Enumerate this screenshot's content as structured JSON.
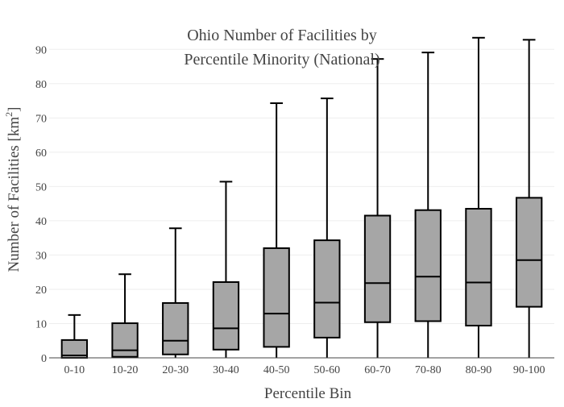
{
  "chart_data": {
    "type": "box",
    "title": [
      "Ohio Number of Facilities by",
      "Percentile Minority (National)"
    ],
    "xlabel": "Percentile Bin",
    "ylabel": "Number of Facilities  [km",
    "ylabel_sup": "2",
    "ylabel_close": "]",
    "ylim": [
      0,
      95
    ],
    "yticks": [
      0,
      10,
      20,
      30,
      40,
      50,
      60,
      70,
      80,
      90
    ],
    "grid": true,
    "categories": [
      "0-10",
      "10-20",
      "20-30",
      "30-40",
      "40-50",
      "50-60",
      "60-70",
      "70-80",
      "80-90",
      "90-100"
    ],
    "boxes": [
      {
        "min": 0,
        "q1": 0,
        "median": 0.7,
        "q3": 5.2,
        "max": 12.5
      },
      {
        "min": 0,
        "q1": 0.3,
        "median": 2.2,
        "q3": 10.1,
        "max": 24.4
      },
      {
        "min": 0,
        "q1": 1.0,
        "median": 5.0,
        "q3": 16.0,
        "max": 37.8
      },
      {
        "min": 0,
        "q1": 2.4,
        "median": 8.6,
        "q3": 22.1,
        "max": 51.4
      },
      {
        "min": 0,
        "q1": 3.2,
        "median": 12.9,
        "q3": 32.0,
        "max": 74.3
      },
      {
        "min": 0,
        "q1": 5.9,
        "median": 16.1,
        "q3": 34.3,
        "max": 75.7
      },
      {
        "min": 0,
        "q1": 10.4,
        "median": 21.8,
        "q3": 41.5,
        "max": 87.2
      },
      {
        "min": 0,
        "q1": 10.7,
        "median": 23.7,
        "q3": 43.1,
        "max": 89.1
      },
      {
        "min": 0,
        "q1": 9.4,
        "median": 22.0,
        "q3": 43.5,
        "max": 93.4
      },
      {
        "min": 0,
        "q1": 14.9,
        "median": 28.5,
        "q3": 46.7,
        "max": 92.8
      }
    ],
    "colors": {
      "box_fill": "#a6a6a6",
      "line": "#000000",
      "grid": "#eeeeee",
      "axis": "#444444",
      "text": "#444444"
    }
  }
}
